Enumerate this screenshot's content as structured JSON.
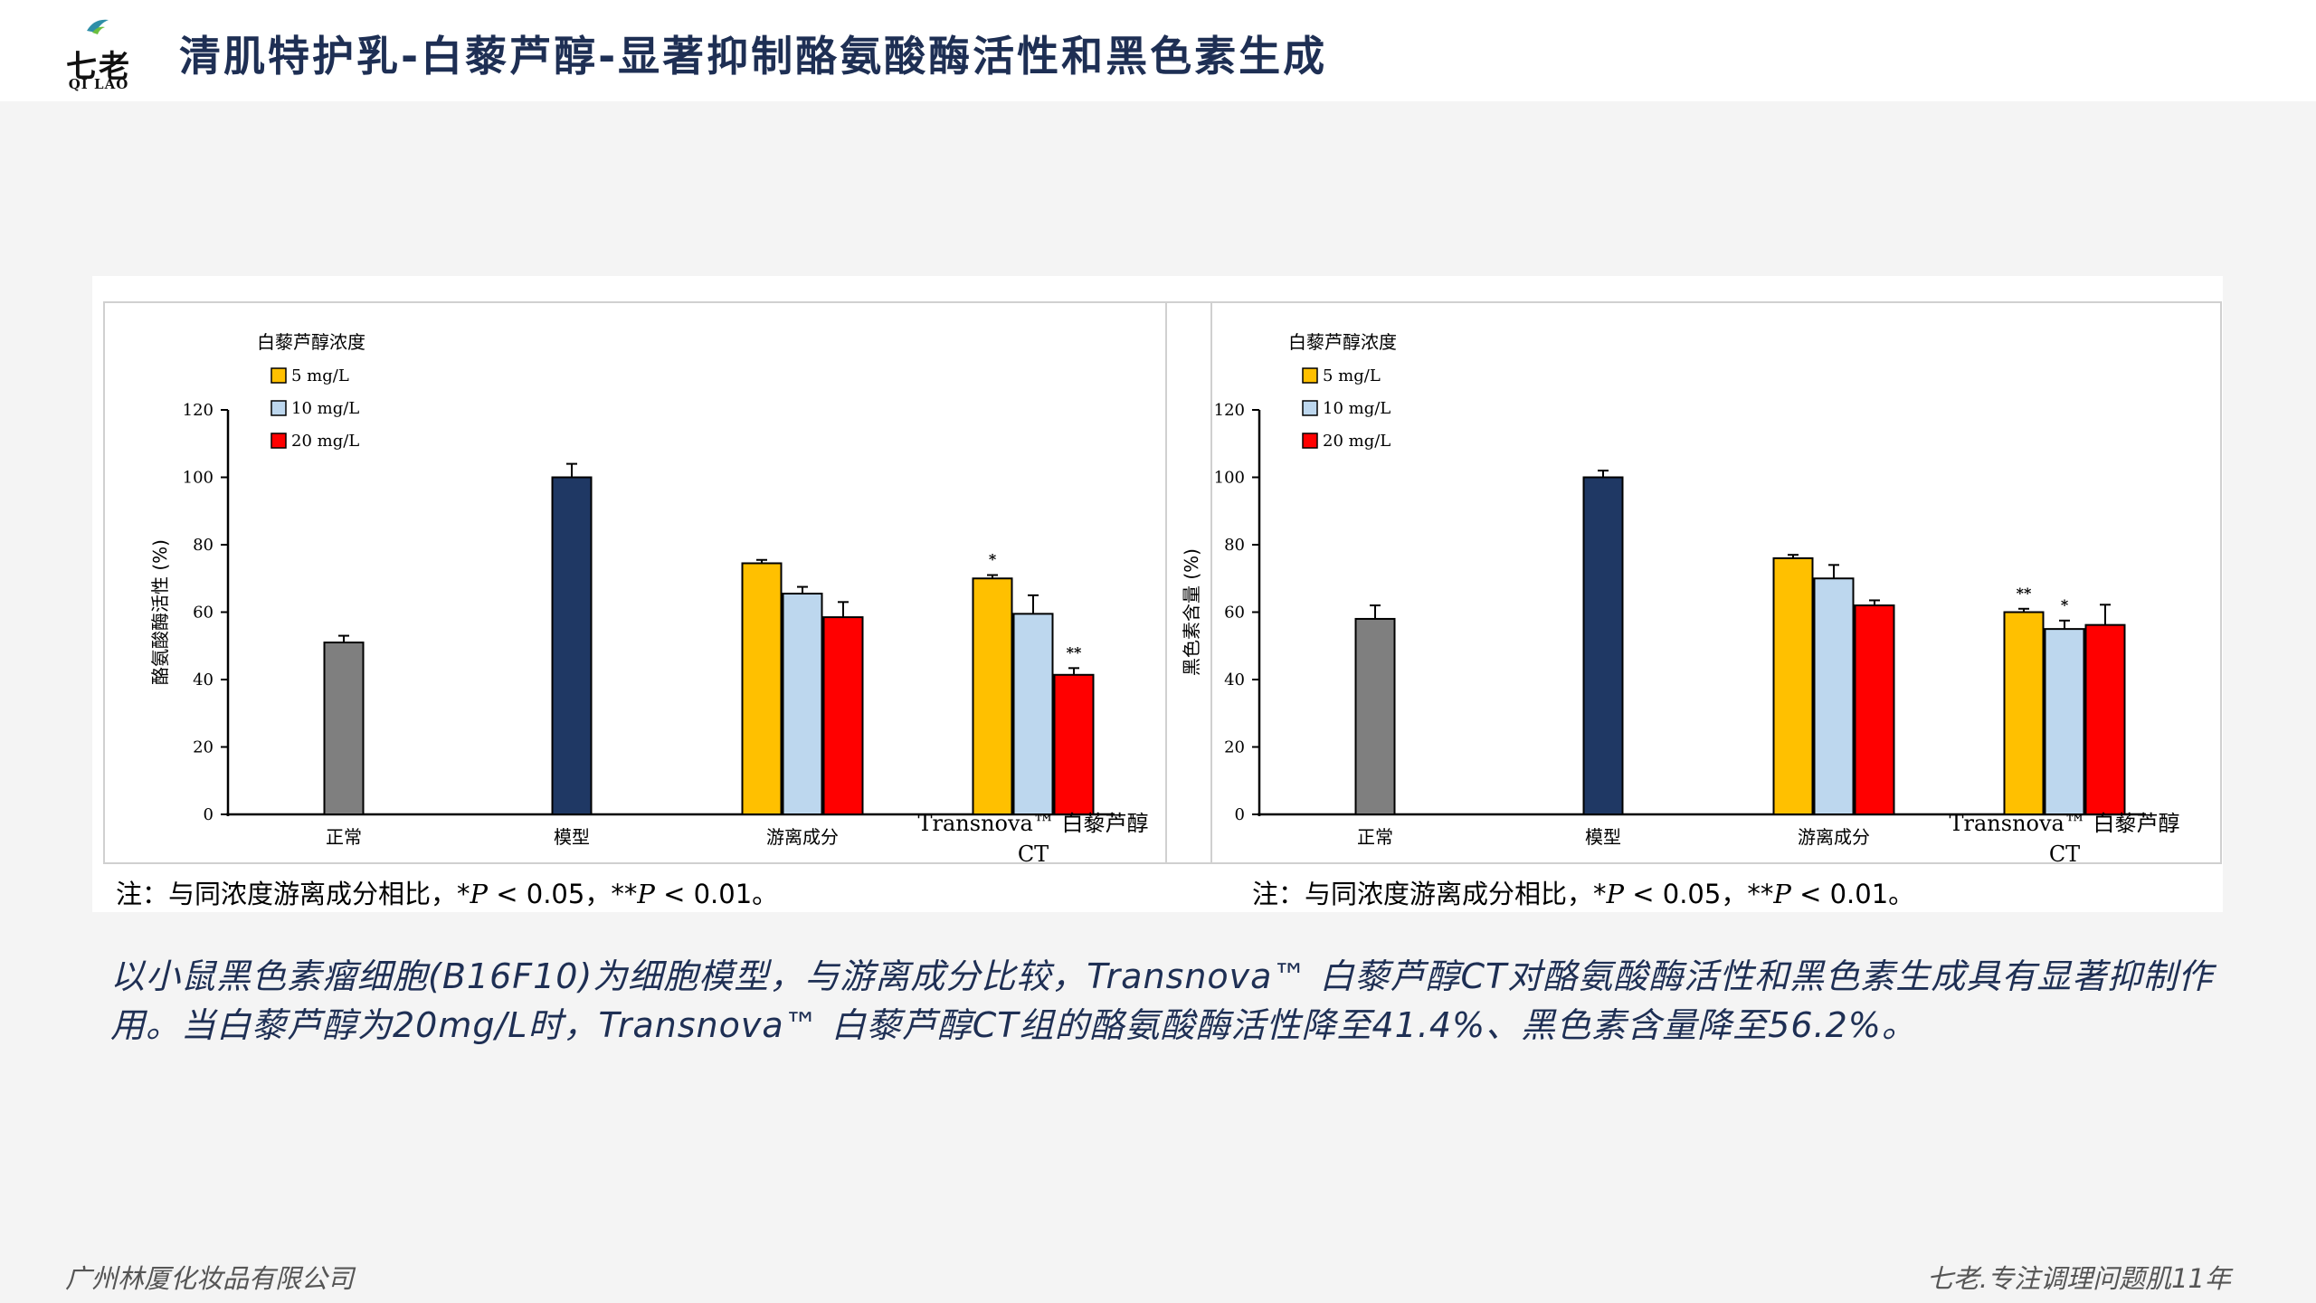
{
  "logo": {
    "cn": "七老",
    "en": "QI LAO"
  },
  "title": "清肌特护乳-白藜芦醇-显著抑制酪氨酸酶活性和黑色素生成",
  "description": "以小鼠黑色素瘤细胞(B16F10)为细胞模型，与游离成分比较，Transnova™ 白藜芦醇CT对酪氨酸酶活性和黑色素生成具有显著抑制作用。当白藜芦醇为20mg/L时，Transnova™ 白藜芦醇CT组的酪氨酸酶活性降至41.4%、黑色素含量降至56.2%。",
  "footer": {
    "left": "广州林厦化妆品有限公司",
    "right": "七老.专注调理问题肌11年"
  },
  "colors": {
    "title": "#1e2f54",
    "normal": "#7f7f7f",
    "model": "#1f3864",
    "s5": "#ffc000",
    "s10": "#bdd7ee",
    "s20": "#ff0000"
  },
  "chart_data": [
    {
      "type": "bar",
      "ylabel": "酪氨酸酶活性 (%)",
      "ylim": [
        0,
        120
      ],
      "yticks": [
        "0",
        "20",
        "40",
        "60",
        "80",
        "100",
        "120"
      ],
      "legend_title": "白藜芦醇浓度",
      "legend_position": "top-left",
      "categories": [
        "正常",
        "模型",
        "游离成分",
        "Transnova™ 白藜芦醇",
        "CT"
      ],
      "bars": [
        {
          "group": 0,
          "series": "normal",
          "value": 51,
          "err": 2
        },
        {
          "group": 1,
          "series": "model",
          "value": 100,
          "err": 4
        },
        {
          "group": 2,
          "series": "s5",
          "value": 74.5,
          "err": 1
        },
        {
          "group": 2,
          "series": "s10",
          "value": 65.5,
          "err": 2
        },
        {
          "group": 2,
          "series": "s20",
          "value": 58.5,
          "err": 4.5
        },
        {
          "group": 3,
          "series": "s5",
          "value": 70,
          "err": 1,
          "sig": "*"
        },
        {
          "group": 3,
          "series": "s10",
          "value": 59.5,
          "err": 5.5
        },
        {
          "group": 3,
          "series": "s20",
          "value": 41.4,
          "err": 2,
          "sig": "**"
        }
      ],
      "series": [
        {
          "key": "s5",
          "name": "5 mg/L"
        },
        {
          "key": "s10",
          "name": "10 mg/L"
        },
        {
          "key": "s20",
          "name": "20 mg/L"
        }
      ],
      "note_prefix": "注：与同浓度游离成分相比，*",
      "note_p1": "P",
      "note_mid": " < 0.05，**",
      "note_p2": "P",
      "note_end": " < 0.01。"
    },
    {
      "type": "bar",
      "ylabel": "黑色素含量 (%)",
      "ylim": [
        0,
        120
      ],
      "yticks": [
        "0",
        "20",
        "40",
        "60",
        "80",
        "100",
        "120"
      ],
      "legend_title": "白藜芦醇浓度",
      "legend_position": "top-left",
      "categories": [
        "正常",
        "模型",
        "游离成分",
        "Transnova™ 白藜芦醇",
        "CT"
      ],
      "bars": [
        {
          "group": 0,
          "series": "normal",
          "value": 58,
          "err": 4
        },
        {
          "group": 1,
          "series": "model",
          "value": 100,
          "err": 2
        },
        {
          "group": 2,
          "series": "s5",
          "value": 76,
          "err": 1
        },
        {
          "group": 2,
          "series": "s10",
          "value": 70,
          "err": 4
        },
        {
          "group": 2,
          "series": "s20",
          "value": 62,
          "err": 1.5
        },
        {
          "group": 3,
          "series": "s5",
          "value": 60,
          "err": 1,
          "sig": "**"
        },
        {
          "group": 3,
          "series": "s10",
          "value": 55,
          "err": 2.5,
          "sig": "*"
        },
        {
          "group": 3,
          "series": "s20",
          "value": 56.2,
          "err": 6
        }
      ],
      "series": [
        {
          "key": "s5",
          "name": "5 mg/L"
        },
        {
          "key": "s10",
          "name": "10 mg/L"
        },
        {
          "key": "s20",
          "name": "20 mg/L"
        }
      ],
      "note_prefix": "注：与同浓度游离成分相比，*",
      "note_p1": "P",
      "note_mid": " < 0.05，**",
      "note_p2": "P",
      "note_end": " < 0.01。"
    }
  ]
}
